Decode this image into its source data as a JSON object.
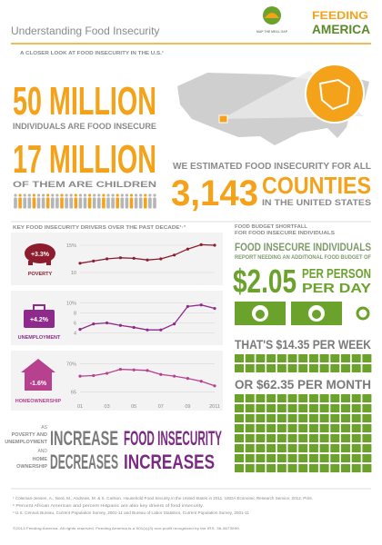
{
  "header": {
    "title": "Understanding Food Insecurity",
    "logo": "MAP THE MEAL GAP",
    "brand_top": "FEEDING",
    "brand_bottom": "AMERICA"
  },
  "intro": {
    "label": "A CLOSER LOOK AT FOOD INSECURITY IN THE U.S.¹"
  },
  "stats": {
    "individuals": "50 MILLION",
    "individuals_text": "INDIVIDUALS ARE FOOD INSECURE",
    "children": "17 MILLION",
    "children_text": "OF THEM ARE CHILDREN",
    "counties_intro": "WE ESTIMATED FOOD INSECURITY FOR ALL",
    "counties": "3,143",
    "counties_label": "COUNTIES",
    "counties_text": "IN THE UNITED STATES"
  },
  "drivers": {
    "title": "KEY FOOD INSECURITY DRIVERS OVER THE PAST DECADE¹·³"
  },
  "chart_data": [
    {
      "type": "line",
      "title": "POVERTY",
      "annotation": "+3.3%",
      "color": "#8c1c2e",
      "values": [
        11.7,
        12.1,
        12.5,
        12.7,
        12.6,
        12.3,
        12.5,
        13.2,
        14.3,
        15.1,
        15.0
      ],
      "ylim": [
        9,
        16
      ],
      "yticks": [
        10,
        {
          "value": 15,
          "label": "15%"
        }
      ],
      "grid": true
    },
    {
      "type": "line",
      "title": "UNEMPLOYMENT",
      "annotation": "+4.2%",
      "color": "#8e2a8c",
      "values": [
        4.7,
        5.8,
        6.0,
        5.5,
        5.1,
        4.6,
        4.6,
        5.8,
        9.3,
        9.6,
        8.9
      ],
      "ylim": [
        3,
        11
      ],
      "yticks": [
        4,
        6,
        8,
        {
          "value": 10,
          "label": "10%"
        }
      ],
      "grid": true
    },
    {
      "type": "line",
      "title": "HOMEOWNERSHIP",
      "annotation": "-1.6%",
      "color": "#b8418f",
      "categories": [
        "01",
        null,
        "03",
        null,
        "05",
        null,
        "07",
        null,
        "09",
        null,
        "2011"
      ],
      "values": [
        67.8,
        67.9,
        68.3,
        69.0,
        68.9,
        68.8,
        68.1,
        67.8,
        67.4,
        66.9,
        66.1
      ],
      "ylim": [
        64,
        71
      ],
      "yticks": [
        65,
        {
          "value": 70,
          "label": "70%"
        }
      ],
      "grid": true
    }
  ],
  "budget": {
    "heading_1": "FOOD BUDGET SHORTFALL",
    "heading_2": "FOR FOOD INSECURE INDIVIDUALS",
    "subject": "FOOD INSECURE INDIVIDUALS",
    "report": "REPORT NEEDING AN ADDITIONAL FOOD BUDGET OF",
    "amount": "$2.05",
    "per_person": "PER PERSON",
    "per_day": "PER DAY",
    "week": "THAT'S $14.35 PER WEEK",
    "month": "OR $62.35 PER MONTH"
  },
  "conclusion": {
    "as": "AS",
    "poverty": "POVERTY AND",
    "unemployment": "UNEMPLOYMENT",
    "increase": "INCREASE",
    "and": "AND",
    "home": "HOME",
    "ownership": "OWNERSHIP",
    "decreases": "DECREASES",
    "result_1": "FOOD INSECURITY",
    "result_2": "INCREASES"
  },
  "footnotes": [
    "¹ Coleman-Jensen, A., Nord, M., Andrews, M. & S. Carlson. Household Food Security in the United States in 2011. USDA Economic Research Service, 2012. Print.",
    "² Percent African American and percent Hispanic are also key drivers of food insecurity.",
    "³ U.S. Census Bureau, Current Population Survey, 2001-11 and Bureau of Labor Statistics, Current Population Survey, 2001-11"
  ],
  "copyright": "©2013 Feeding America. All rights reserved. Feeding America is a 501(c)(3) non-profit recognized by the IRS. 36-3673599."
}
